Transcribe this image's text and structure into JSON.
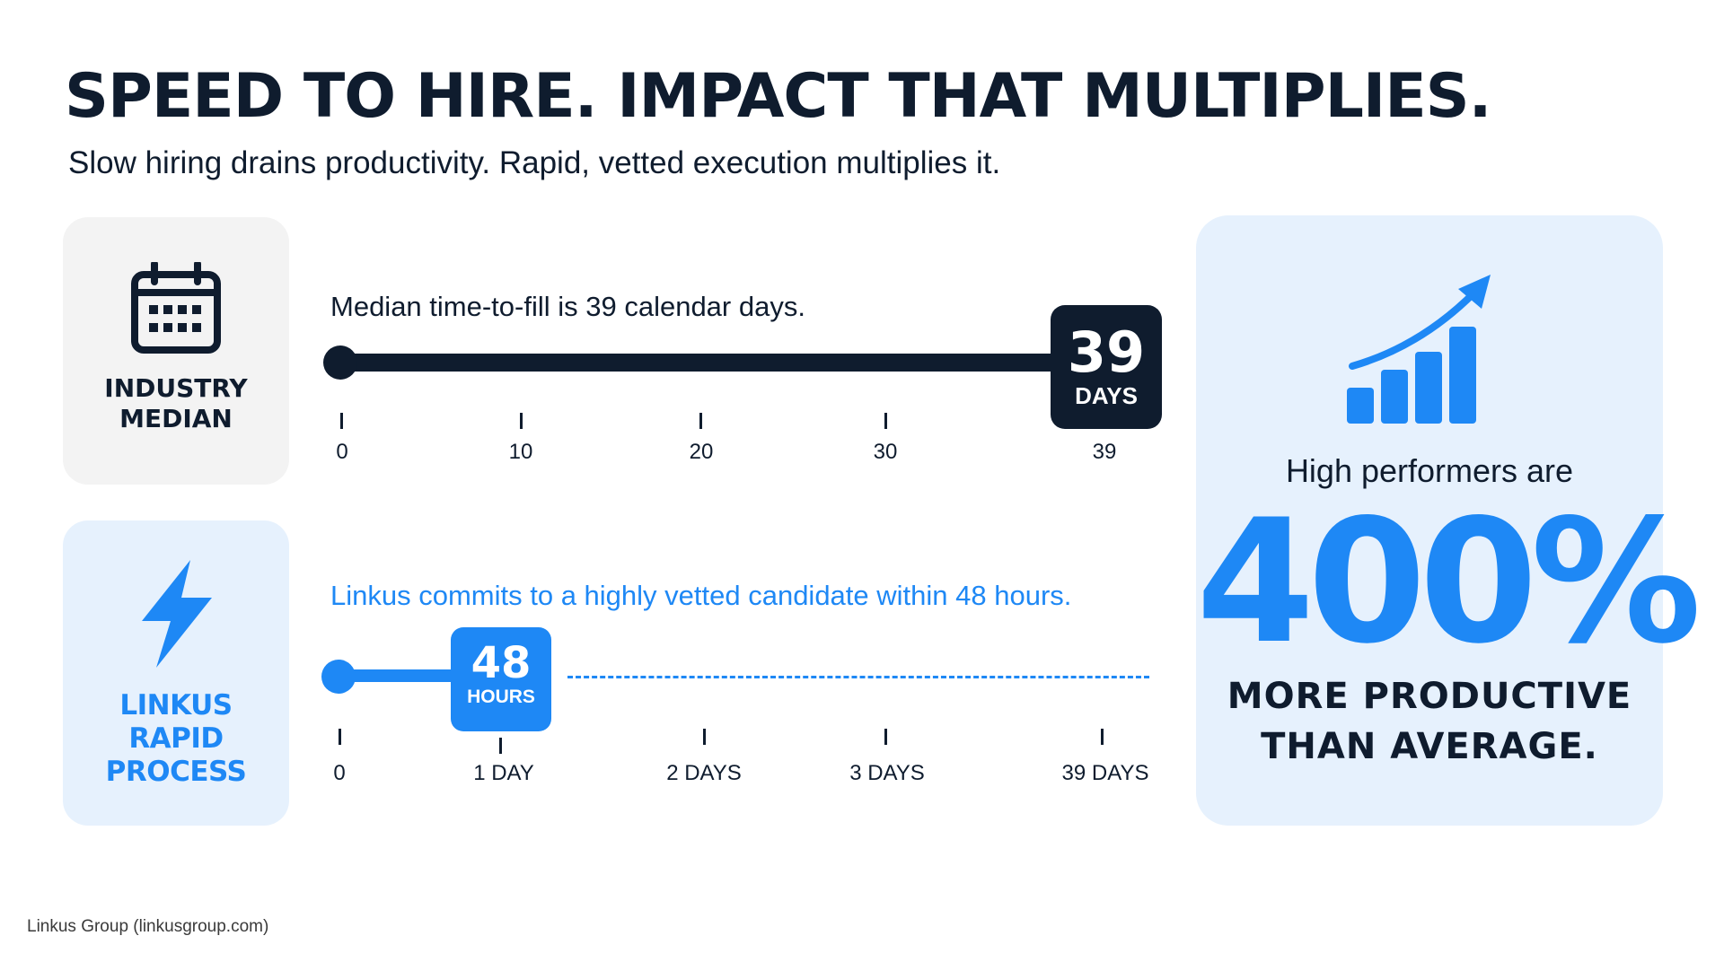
{
  "header": {
    "title": "SPEED TO HIRE. IMPACT THAT MULTIPLIES.",
    "subtitle": "Slow hiring drains productivity. Rapid, vetted execution multiplies it."
  },
  "industry": {
    "label_line1": "INDUSTRY",
    "label_line2": "MEDIAN",
    "icon": "calendar-icon",
    "caption": "Median time-to-fill is 39 calendar days.",
    "badge_value": "39",
    "badge_unit": "DAYS",
    "ticks": [
      "0",
      "10",
      "20",
      "30",
      "39"
    ]
  },
  "linkus": {
    "label_line1": "LINKUS",
    "label_line2": "RAPID PROCESS",
    "icon": "lightning-bolt-icon",
    "caption": "Linkus commits to a highly vetted candidate within 48 hours.",
    "badge_value": "48",
    "badge_unit": "HOURS",
    "ticks": [
      "0",
      "1 DAY",
      "2 DAYS",
      "3 DAYS",
      "39 DAYS"
    ]
  },
  "performance": {
    "icon": "growth-chart-icon",
    "lead": "High performers are",
    "value": "400%",
    "tail_line1": "MORE PRODUCTIVE",
    "tail_line2": "THAN AVERAGE."
  },
  "footer": {
    "source": "Linkus Group (linkusgroup.com)"
  },
  "colors": {
    "navy": "#0f1c2e",
    "blue": "#1e88f5",
    "light_blue_bg": "#e6f1fd",
    "gray_bg": "#f3f3f3"
  }
}
